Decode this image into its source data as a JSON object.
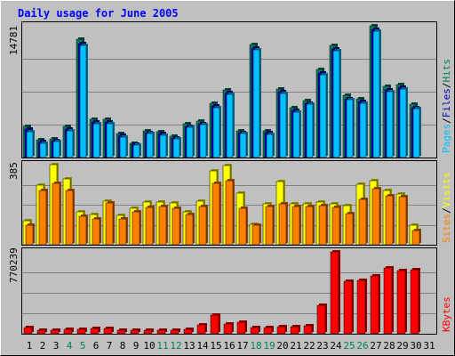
{
  "chart_data": [
    {
      "type": "bar",
      "title": "Daily usage for June 2005",
      "categories": [
        "1",
        "2",
        "3",
        "4",
        "5",
        "6",
        "7",
        "8",
        "9",
        "10",
        "11",
        "12",
        "13",
        "14",
        "15",
        "16",
        "17",
        "18",
        "19",
        "20",
        "21",
        "22",
        "23",
        "24",
        "25",
        "26",
        "27",
        "28",
        "29",
        "30",
        "31"
      ],
      "weekend_days": [
        "4",
        "5",
        "11",
        "12",
        "18",
        "19",
        "25",
        "26"
      ],
      "ymax_label": "14781",
      "series": [
        {
          "name": "Hits",
          "color": "#00805c",
          "values": [
            3450,
            1950,
            2080,
            3450,
            13250,
            4270,
            4270,
            2680,
            1630,
            3010,
            2910,
            2350,
            3800,
            4080,
            6050,
            7620,
            3020,
            12700,
            3000,
            7700,
            5600,
            6400,
            9860,
            12600,
            7000,
            6600,
            14781,
            7950,
            8200,
            5980,
            0
          ]
        },
        {
          "name": "Files",
          "color": "#0000c0",
          "values": [
            3150,
            1750,
            1900,
            3150,
            12800,
            3950,
            3950,
            2450,
            1450,
            2800,
            2650,
            2150,
            3500,
            3800,
            5750,
            7300,
            2800,
            12300,
            2750,
            7400,
            5250,
            6100,
            9500,
            12200,
            6600,
            6250,
            14400,
            7600,
            7850,
            5600,
            0
          ]
        },
        {
          "name": "Pages",
          "color": "#00c0ff",
          "values": [
            2900,
            1600,
            1750,
            2950,
            12550,
            3800,
            3750,
            2300,
            1350,
            2650,
            2500,
            2050,
            3400,
            3650,
            5550,
            7100,
            2650,
            12100,
            2600,
            7200,
            5100,
            5950,
            9300,
            12000,
            6450,
            6100,
            14200,
            7400,
            7700,
            5450,
            0
          ]
        }
      ]
    },
    {
      "type": "bar",
      "ymax_label": "385",
      "series": [
        {
          "name": "Visits",
          "color": "#ffff00",
          "values": [
            115,
            285,
            385,
            315,
            160,
            145,
            210,
            140,
            175,
            205,
            205,
            200,
            160,
            210,
            355,
            380,
            250,
            100,
            195,
            305,
            195,
            195,
            205,
            195,
            190,
            290,
            310,
            260,
            245,
            95,
            0
          ]
        },
        {
          "name": "Sites",
          "color": "#ff8000",
          "values": [
            95,
            260,
            295,
            260,
            135,
            125,
            200,
            125,
            160,
            180,
            185,
            175,
            145,
            185,
            295,
            310,
            175,
            95,
            185,
            195,
            185,
            185,
            190,
            180,
            150,
            220,
            270,
            235,
            230,
            70,
            0
          ]
        }
      ]
    },
    {
      "type": "bar",
      "ymax_label": "770239",
      "series": [
        {
          "name": "KBytes",
          "color": "#ff0000",
          "values": [
            57000,
            37000,
            37000,
            45000,
            45000,
            50000,
            47000,
            30000,
            30000,
            35000,
            33000,
            37000,
            43000,
            85000,
            180000,
            90000,
            110000,
            57000,
            57000,
            65000,
            65000,
            75000,
            270000,
            770239,
            495000,
            505000,
            545000,
            620000,
            595000,
            600000,
            0
          ]
        }
      ]
    }
  ],
  "legend": {
    "hits": "Hits",
    "files": "Files",
    "pages": "Pages",
    "visits": "Visits",
    "sites": "Sites",
    "kbytes": "KBytes",
    "sep": "/"
  },
  "theme": {
    "bg": "#c0c0c0",
    "plot_bg": "#c0c0c0",
    "title_color": "#0000ff",
    "weekday_label": "#000000",
    "weekend_label": "#00805c",
    "grid": "#808080"
  }
}
